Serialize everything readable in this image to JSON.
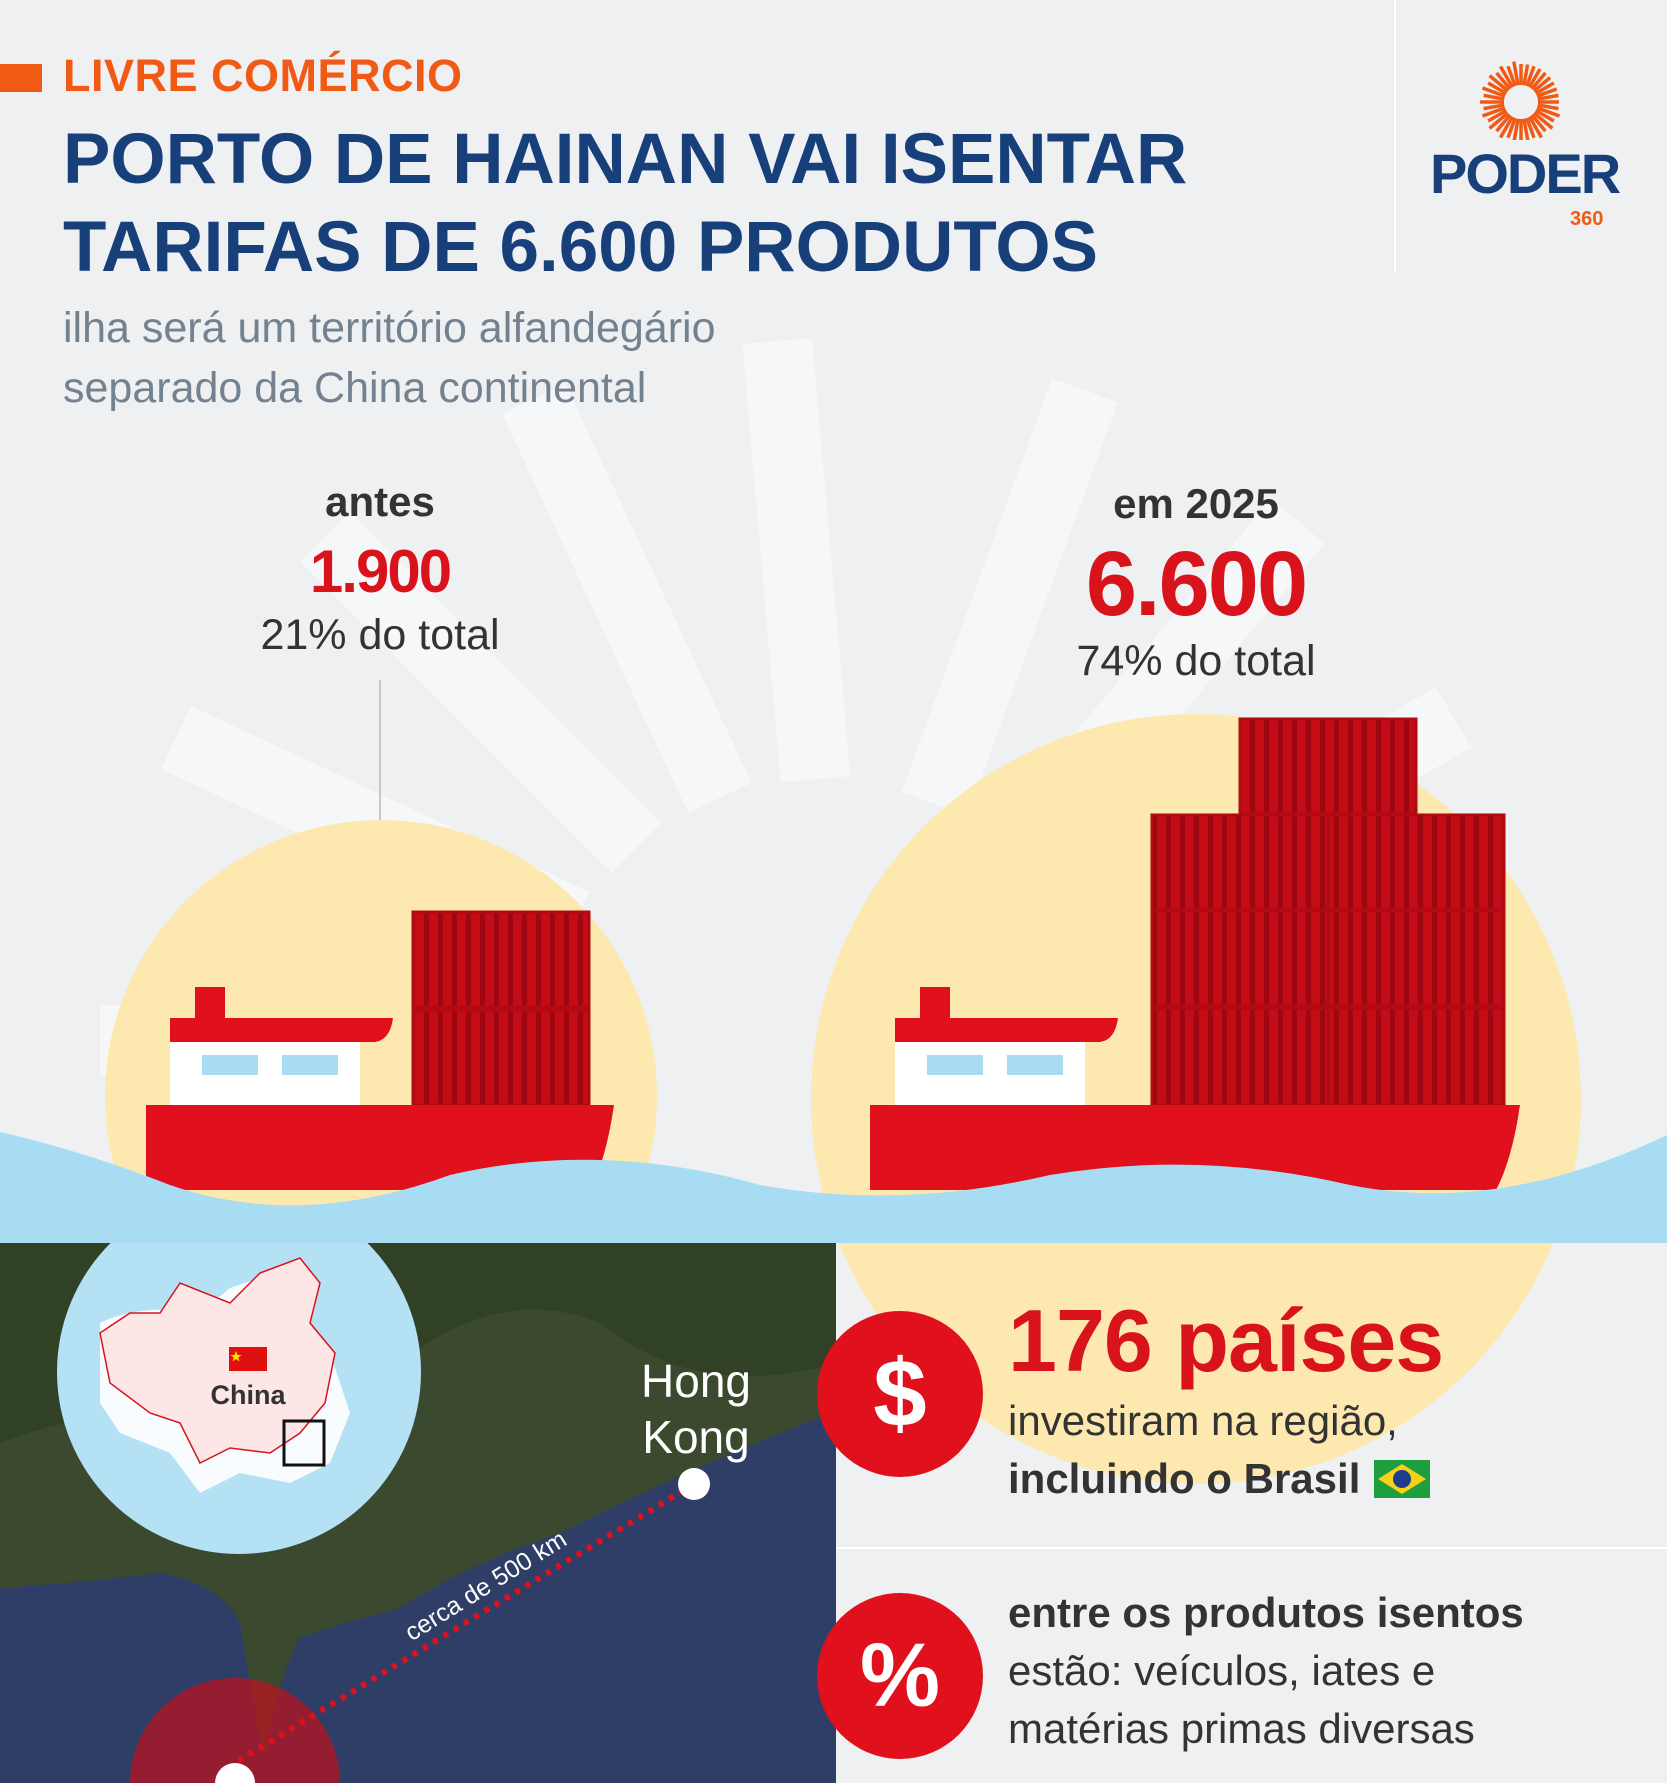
{
  "header": {
    "tag": "LIVRE COMÉRCIO",
    "title_line1": "PORTO DE HAINAN VAI ISENTAR",
    "title_line2": "TARIFAS DE 6.600 PRODUTOS",
    "subtitle_line1": "ilha será um território alfandegário",
    "subtitle_line2": "separado da China continental"
  },
  "logo": {
    "name": "PODER",
    "suffix": "360"
  },
  "before": {
    "label": "antes",
    "value": "1.900",
    "share": "21% do total"
  },
  "after": {
    "label": "em 2025",
    "value": "6.600",
    "share": "74% do total"
  },
  "map": {
    "inset_label": "China",
    "city_label_line1": "Hong",
    "city_label_line2": "Kong",
    "distance_label": "cerca de 500 km"
  },
  "facts": [
    {
      "icon": "dollar-icon",
      "symbol": "$",
      "headline": "176 países",
      "line1": "investiram na região,",
      "line2_bold": "incluindo o Brasil"
    },
    {
      "icon": "percent-icon",
      "symbol": "%",
      "line1_bold": "entre os produtos isentos",
      "line2": "estão: veículos, iates e",
      "line3": "matérias primas diversas"
    }
  ],
  "colors": {
    "accent_orange": "#f05a14",
    "navy": "#173f7a",
    "red": "#d9131c",
    "sun": "#fde9b0",
    "water": "#a8dcf3"
  }
}
